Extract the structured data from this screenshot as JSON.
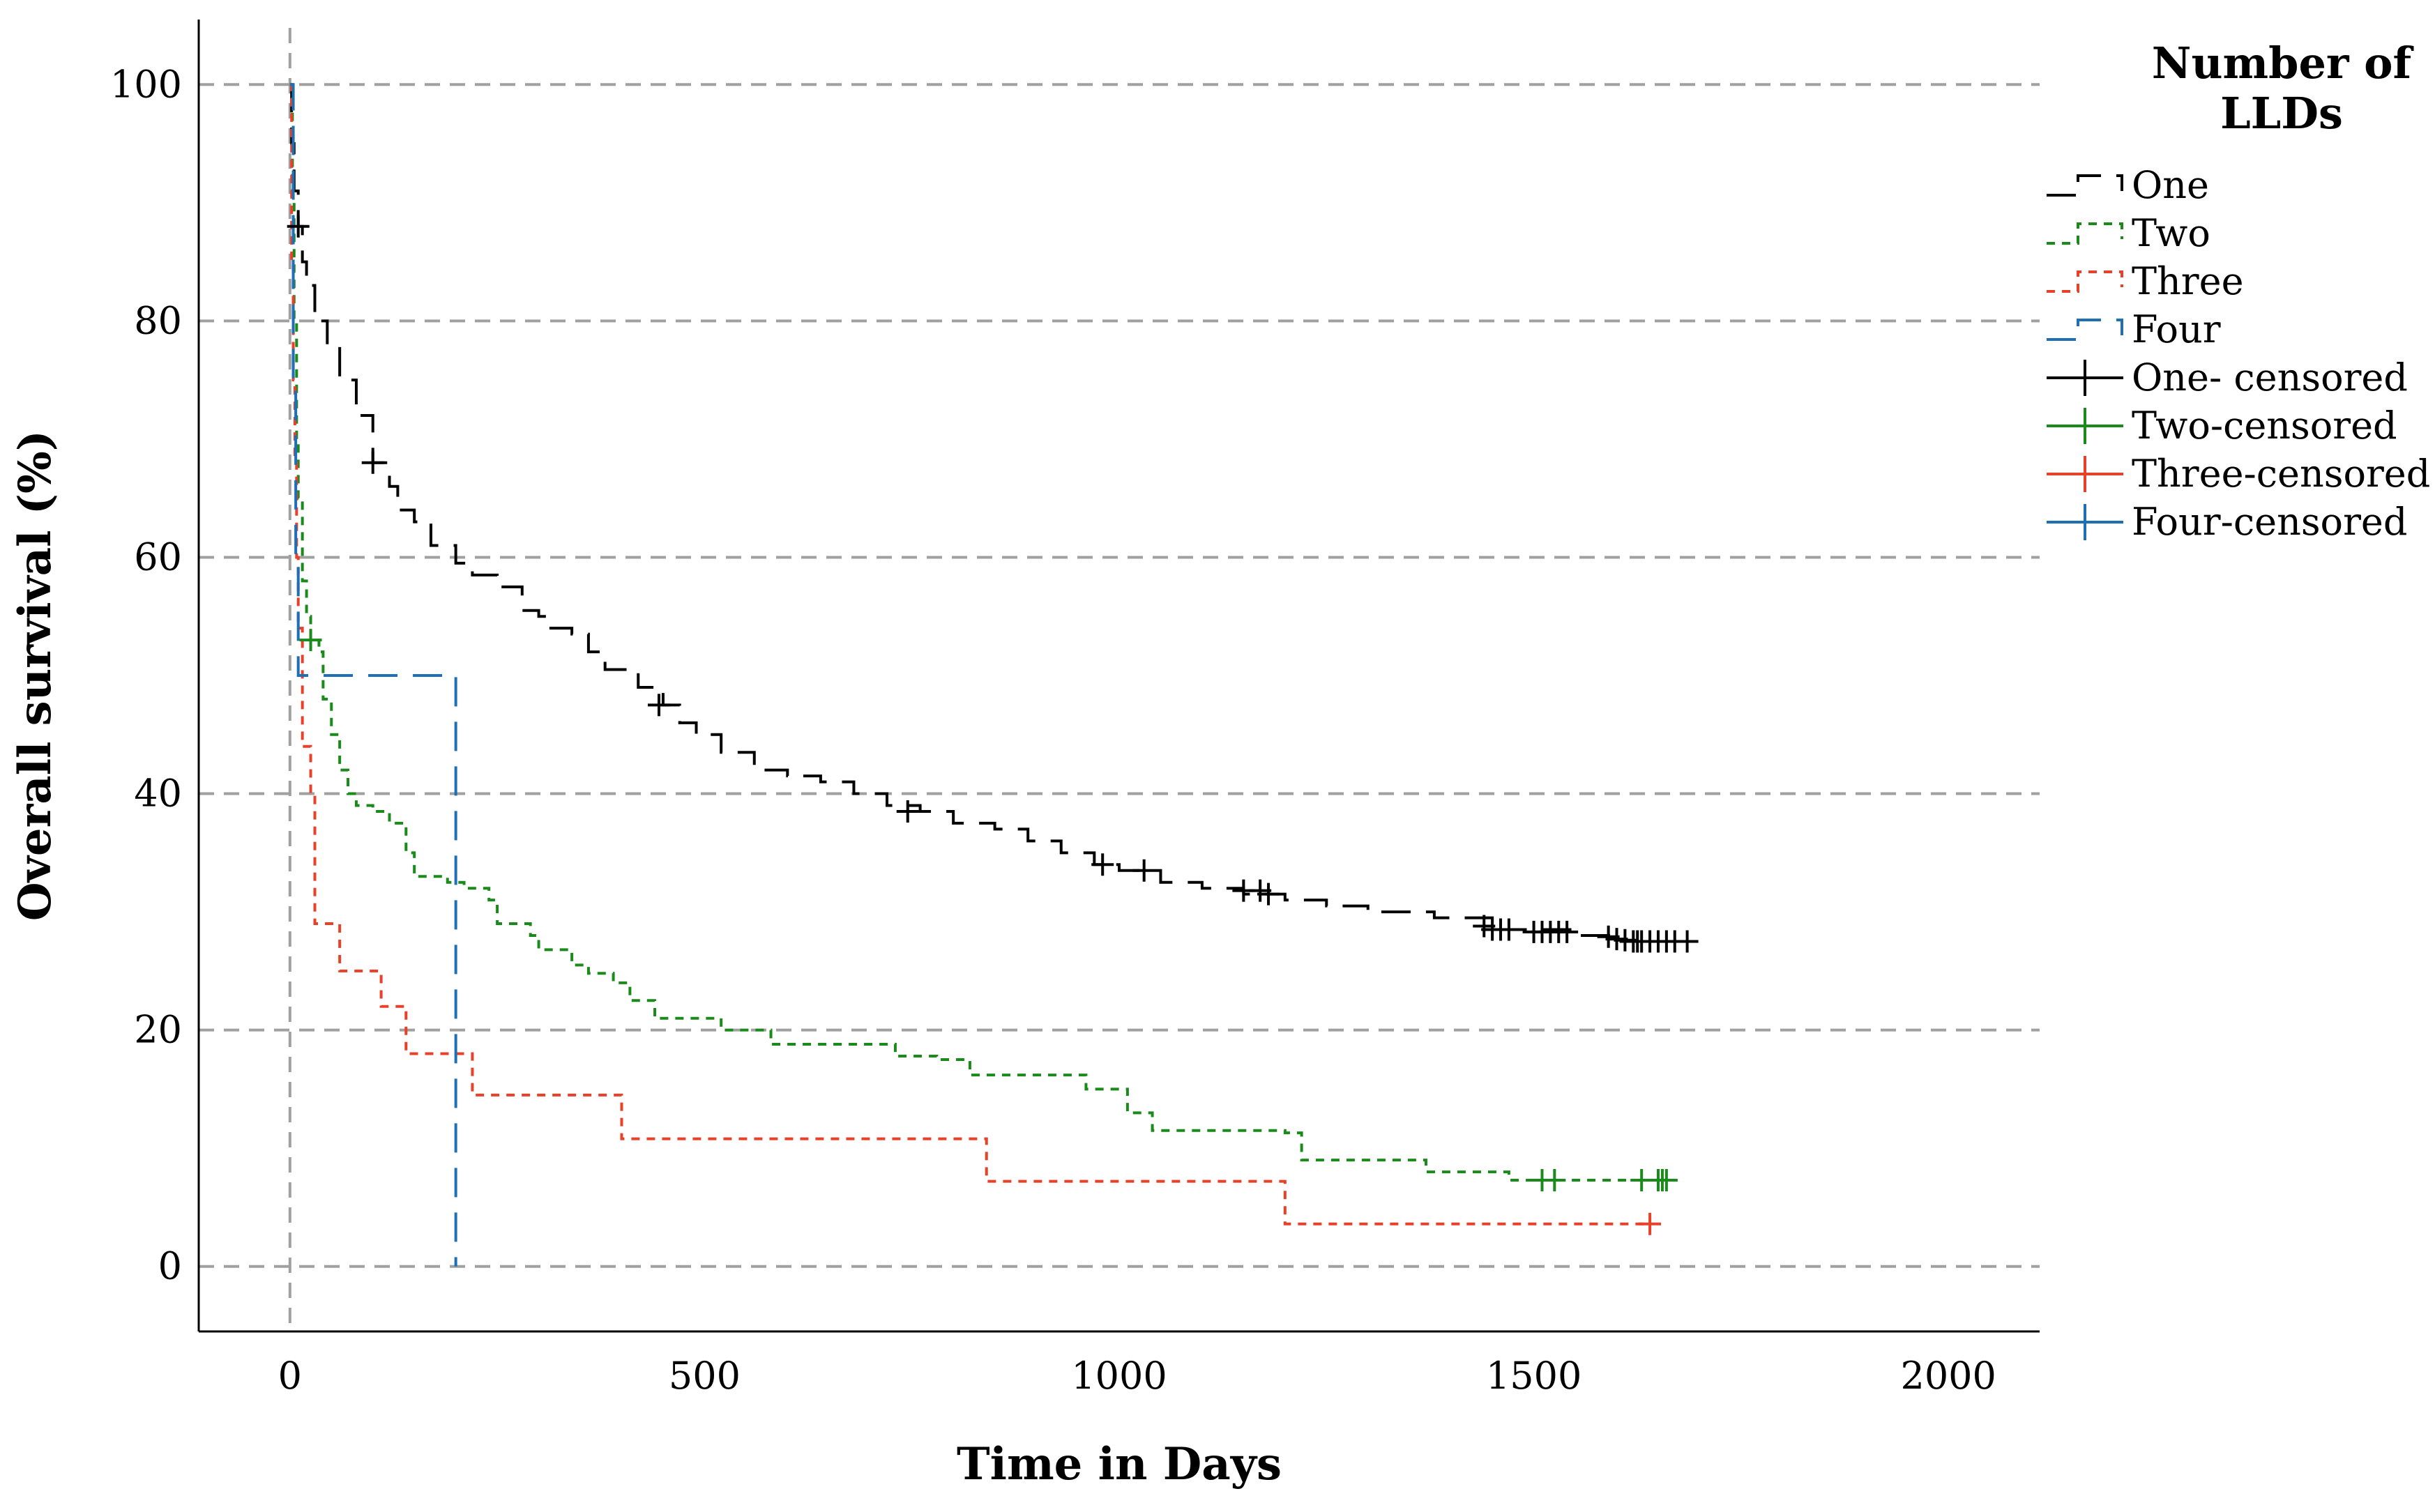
{
  "chart_data": {
    "type": "line",
    "title": "",
    "xlabel": "Time in Days",
    "ylabel": "Overall survival (%)",
    "xlim": [
      -110,
      2110
    ],
    "ylim": [
      -5.5,
      105.5
    ],
    "x_ticks": [
      0,
      500,
      1000,
      1500,
      2000
    ],
    "y_ticks": [
      0,
      20,
      40,
      60,
      80,
      100
    ],
    "grid": "horizontal dashed at y ticks, dashed vertical reference at x = 0",
    "legend": {
      "title_line1": "Number of",
      "title_line2": "LLDs",
      "placement": "top-right, outside plot"
    },
    "series": [
      {
        "name": "One",
        "color": "#000000",
        "dash": "long",
        "points": [
          [
            0,
            100
          ],
          [
            2,
            95
          ],
          [
            5,
            91
          ],
          [
            10,
            88
          ],
          [
            15,
            85
          ],
          [
            20,
            83
          ],
          [
            30,
            80
          ],
          [
            45,
            78
          ],
          [
            60,
            75
          ],
          [
            80,
            72
          ],
          [
            100,
            68
          ],
          [
            120,
            66
          ],
          [
            130,
            64
          ],
          [
            150,
            63
          ],
          [
            170,
            61
          ],
          [
            200,
            59.5
          ],
          [
            220,
            58.5
          ],
          [
            250,
            57.5
          ],
          [
            280,
            55.5
          ],
          [
            300,
            55
          ],
          [
            310,
            54
          ],
          [
            340,
            53.5
          ],
          [
            360,
            52
          ],
          [
            380,
            50.5
          ],
          [
            420,
            49
          ],
          [
            450,
            47.5
          ],
          [
            470,
            46
          ],
          [
            490,
            45
          ],
          [
            520,
            43.5
          ],
          [
            560,
            42
          ],
          [
            600,
            41.5
          ],
          [
            640,
            41
          ],
          [
            680,
            40
          ],
          [
            720,
            39
          ],
          [
            760,
            38.5
          ],
          [
            800,
            37.5
          ],
          [
            850,
            37
          ],
          [
            890,
            36
          ],
          [
            930,
            35
          ],
          [
            970,
            34
          ],
          [
            1000,
            33.5
          ],
          [
            1050,
            32.5
          ],
          [
            1100,
            32
          ],
          [
            1150,
            31.5
          ],
          [
            1200,
            31
          ],
          [
            1250,
            30.5
          ],
          [
            1300,
            30
          ],
          [
            1380,
            29.5
          ],
          [
            1450,
            28.5
          ],
          [
            1550,
            28
          ],
          [
            1600,
            27.5
          ],
          [
            1680,
            27.5
          ]
        ]
      },
      {
        "name": "Two",
        "color": "#1a8a1a",
        "dash": "short",
        "points": [
          [
            0,
            100
          ],
          [
            3,
            90
          ],
          [
            5,
            80
          ],
          [
            8,
            70
          ],
          [
            10,
            65
          ],
          [
            15,
            58
          ],
          [
            20,
            55
          ],
          [
            25,
            53
          ],
          [
            35,
            52
          ],
          [
            40,
            48
          ],
          [
            50,
            45
          ],
          [
            60,
            42
          ],
          [
            70,
            40
          ],
          [
            80,
            39
          ],
          [
            100,
            38.5
          ],
          [
            120,
            37.5
          ],
          [
            140,
            35
          ],
          [
            150,
            33
          ],
          [
            190,
            32.5
          ],
          [
            210,
            32
          ],
          [
            240,
            31
          ],
          [
            250,
            29
          ],
          [
            290,
            28
          ],
          [
            300,
            26.8
          ],
          [
            340,
            25.5
          ],
          [
            360,
            24.8
          ],
          [
            390,
            24
          ],
          [
            410,
            22.5
          ],
          [
            440,
            21
          ],
          [
            520,
            20
          ],
          [
            580,
            18.8
          ],
          [
            730,
            17.8
          ],
          [
            780,
            17.5
          ],
          [
            820,
            16.2
          ],
          [
            960,
            15
          ],
          [
            1010,
            13
          ],
          [
            1040,
            11.5
          ],
          [
            1200,
            11.3
          ],
          [
            1220,
            9
          ],
          [
            1370,
            8
          ],
          [
            1470,
            7.3
          ],
          [
            1660,
            7.3
          ]
        ]
      },
      {
        "name": "Three",
        "color": "#e8412a",
        "dash": "short",
        "points": [
          [
            0,
            100
          ],
          [
            2,
            85
          ],
          [
            4,
            75
          ],
          [
            6,
            68
          ],
          [
            8,
            60
          ],
          [
            10,
            54
          ],
          [
            15,
            44
          ],
          [
            25,
            40
          ],
          [
            30,
            29
          ],
          [
            60,
            25
          ],
          [
            110,
            22
          ],
          [
            140,
            18
          ],
          [
            220,
            14.5
          ],
          [
            400,
            10.8
          ],
          [
            840,
            7.2
          ],
          [
            1200,
            3.6
          ],
          [
            1640,
            3.6
          ]
        ]
      },
      {
        "name": "Four",
        "color": "#1f6fb5",
        "dash": "long",
        "points": [
          [
            0,
            100
          ],
          [
            4,
            75
          ],
          [
            7,
            60
          ],
          [
            10,
            50
          ],
          [
            200,
            50
          ],
          [
            200,
            0
          ]
        ]
      },
      {
        "name": "One- censored",
        "color": "#000000",
        "censored_x": [
          10,
          100,
          445,
          745,
          980,
          1030,
          1150,
          1170,
          1180,
          1440,
          1450,
          1460,
          1470,
          1500,
          1510,
          1520,
          1530,
          1540,
          1590,
          1600,
          1610,
          1620,
          1625,
          1630,
          1640,
          1650,
          1660,
          1670,
          1685
        ],
        "censored_y": [
          88,
          68,
          47.5,
          38.5,
          34,
          33.5,
          31.8,
          31.8,
          31.5,
          28.8,
          28.5,
          28.5,
          28.5,
          28.3,
          28.3,
          28.3,
          28.3,
          28.3,
          27.9,
          27.7,
          27.6,
          27.5,
          27.5,
          27.5,
          27.5,
          27.5,
          27.5,
          27.5,
          27.5
        ]
      },
      {
        "name": "Two-censored",
        "color": "#1a8a1a",
        "censored_x": [
          25,
          1510,
          1525,
          1630,
          1650,
          1655,
          1660
        ],
        "censored_y": [
          53,
          7.3,
          7.3,
          7.3,
          7.3,
          7.3,
          7.3
        ]
      },
      {
        "name": "Three-censored",
        "color": "#e8412a",
        "censored_x": [
          1640
        ],
        "censored_y": [
          3.6
        ]
      },
      {
        "name": "Four-censored",
        "color": "#1f6fb5",
        "censored_x": [],
        "censored_y": []
      }
    ]
  }
}
